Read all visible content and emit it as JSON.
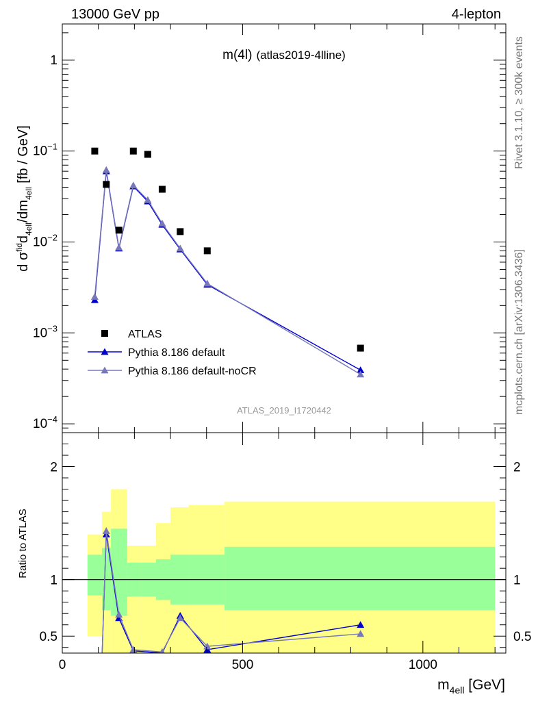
{
  "header": {
    "left": "13000 GeV pp",
    "right": "4-lepton"
  },
  "side_labels": {
    "rivet": "Rivet 3.1.10, ≥ 300k events",
    "mcplots": "mcplots.cern.ch [arXiv:1306.3436]"
  },
  "colors": {
    "atlas": "#000000",
    "pythia_default": "#0000cc",
    "pythia_nocr": "#7878b8",
    "band_inner": "#99ff99",
    "band_outer": "#ffff88"
  },
  "chart_data": [
    {
      "type": "scatter",
      "title_main": "m(4l)",
      "title_sub": "(atlas2019-4lline)",
      "watermark": "ATLAS_2019_I1720442",
      "ylabel_main": "d σ",
      "ylabel_fid": "fid",
      "ylabel_d": "d",
      "ylabel_sub": "4ell",
      "ylabel_mid": "/dm",
      "ylabel_sub2": "4ell",
      "ylabel_unit": " [fb / GeV]",
      "yscale": "log",
      "xlim": [
        0,
        1230
      ],
      "ylim": [
        8e-05,
        2.5
      ],
      "yticks": [
        {
          "value": 1,
          "base": "1",
          "exp": ""
        },
        {
          "value": 0.1,
          "base": "10",
          "exp": "−1"
        },
        {
          "value": 0.01,
          "base": "10",
          "exp": "−2"
        },
        {
          "value": 0.001,
          "base": "10",
          "exp": "−3"
        },
        {
          "value": 0.0001,
          "base": "10",
          "exp": "−4"
        }
      ],
      "legend_placement": "bottom-left",
      "series": [
        {
          "name": "ATLAS",
          "marker": "square",
          "x": [
            90,
            122,
            157,
            197,
            237,
            277,
            327,
            402,
            827
          ],
          "y": [
            0.1,
            0.043,
            0.0135,
            0.1,
            0.092,
            0.038,
            0.013,
            0.008,
            0.00068
          ]
        },
        {
          "name": "Pythia 8.186 default",
          "marker": "triangle",
          "x": [
            90,
            122,
            157,
            197,
            237,
            277,
            327,
            402,
            827
          ],
          "y": [
            0.0023,
            0.06,
            0.0085,
            0.041,
            0.028,
            0.0155,
            0.0083,
            0.0034,
            0.00039
          ]
        },
        {
          "name": "Pythia 8.186 default-noCR",
          "marker": "triangle",
          "x": [
            90,
            122,
            157,
            197,
            237,
            277,
            327,
            402,
            827
          ],
          "y": [
            0.0025,
            0.062,
            0.0087,
            0.042,
            0.029,
            0.016,
            0.0085,
            0.0035,
            0.00035
          ]
        }
      ]
    },
    {
      "type": "scatter",
      "ylabel": "Ratio to ATLAS",
      "xlabel_main": "m",
      "xlabel_sub": "4ell",
      "xlabel_unit": " [GeV]",
      "xlim": [
        0,
        1230
      ],
      "ylim": [
        0.35,
        2.3
      ],
      "xticks": [
        0,
        500,
        1000
      ],
      "yticks": [
        0.5,
        1,
        2
      ],
      "bands": [
        {
          "x0": 70,
          "x1": 110,
          "inner": [
            0.86,
            1.22
          ],
          "outer": [
            0.5,
            1.4
          ]
        },
        {
          "x0": 110,
          "x1": 135,
          "inner": [
            0.73,
            1.28
          ],
          "outer": [
            0.35,
            1.6
          ]
        },
        {
          "x0": 135,
          "x1": 180,
          "inner": [
            0.68,
            1.45
          ],
          "outer": [
            0.35,
            1.8
          ]
        },
        {
          "x0": 180,
          "x1": 220,
          "inner": [
            0.85,
            1.15
          ],
          "outer": [
            0.35,
            1.3
          ]
        },
        {
          "x0": 220,
          "x1": 260,
          "inner": [
            0.85,
            1.15
          ],
          "outer": [
            0.35,
            1.3
          ]
        },
        {
          "x0": 260,
          "x1": 300,
          "inner": [
            0.82,
            1.18
          ],
          "outer": [
            0.35,
            1.5
          ]
        },
        {
          "x0": 300,
          "x1": 350,
          "inner": [
            0.78,
            1.22
          ],
          "outer": [
            0.35,
            1.64
          ]
        },
        {
          "x0": 350,
          "x1": 450,
          "inner": [
            0.78,
            1.22
          ],
          "outer": [
            0.35,
            1.66
          ]
        },
        {
          "x0": 450,
          "x1": 1200,
          "inner": [
            0.73,
            1.29
          ],
          "outer": [
            0.35,
            1.69
          ]
        }
      ],
      "series": [
        {
          "name": "Pythia 8.186 default",
          "x": [
            110,
            122,
            157,
            197,
            277,
            327,
            402,
            827
          ],
          "y": [
            0.3,
            1.4,
            0.66,
            0.37,
            0.35,
            0.68,
            0.38,
            0.6
          ],
          "err": [
            0,
            0.03,
            0.02,
            0.01,
            0.01,
            0.02,
            0.02,
            0.02
          ]
        },
        {
          "name": "Pythia 8.186 default-noCR",
          "x": [
            110,
            122,
            157,
            197,
            277,
            327,
            402,
            827
          ],
          "y": [
            0.3,
            1.43,
            0.69,
            0.38,
            0.36,
            0.66,
            0.41,
            0.52
          ],
          "err": [
            0,
            0.03,
            0.02,
            0.01,
            0.01,
            0.02,
            0.02,
            0.02
          ]
        }
      ]
    }
  ]
}
